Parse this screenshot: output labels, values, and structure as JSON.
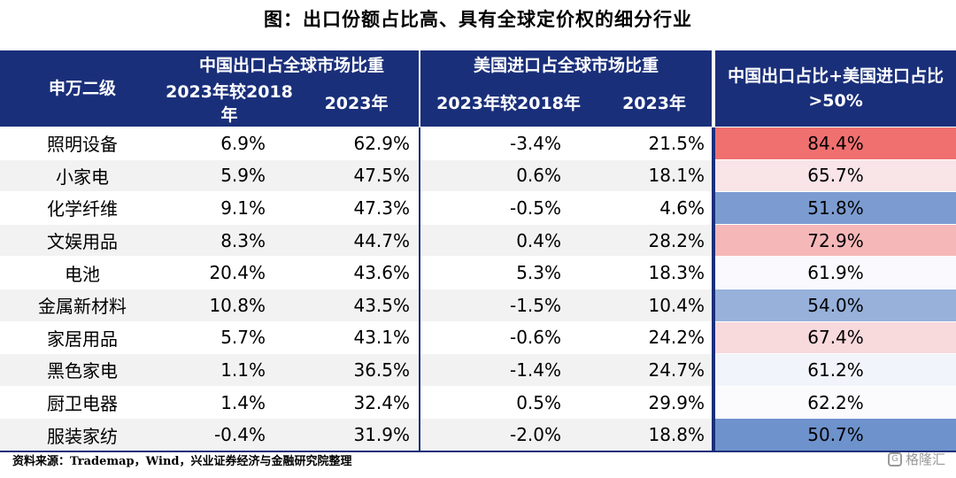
{
  "title": "图：出口份额占比高、具有全球定价权的细分行业",
  "header": {
    "col_industry": "申万二级",
    "group_cn_export": "中国出口占全球市场比重",
    "group_us_import": "美国进口占全球市场比重",
    "col_combined": "中国出口占比+美国进口占比>50%",
    "sub_change": "2023年较2018年",
    "sub_2023": "2023年"
  },
  "chart_data": {
    "type": "table",
    "columns": [
      "申万二级",
      "中国出口占全球市场比重 2023年较2018年",
      "中国出口占全球市场比重 2023年",
      "美国进口占全球市场比重 2023年较2018年",
      "美国进口占全球市场比重 2023年",
      "中国出口占比+美国进口占比>50%"
    ],
    "rows": [
      {
        "industry": "照明设备",
        "cn_change": "6.9%",
        "cn_2023": "62.9%",
        "us_change": "-3.4%",
        "us_2023": "21.5%",
        "combined": "84.4%",
        "combined_value": 84.4
      },
      {
        "industry": "小家电",
        "cn_change": "5.9%",
        "cn_2023": "47.5%",
        "us_change": "0.6%",
        "us_2023": "18.1%",
        "combined": "65.7%",
        "combined_value": 65.7
      },
      {
        "industry": "化学纤维",
        "cn_change": "9.1%",
        "cn_2023": "47.3%",
        "us_change": "-0.5%",
        "us_2023": "4.6%",
        "combined": "51.8%",
        "combined_value": 51.8
      },
      {
        "industry": "文娱用品",
        "cn_change": "8.3%",
        "cn_2023": "44.7%",
        "us_change": "0.4%",
        "us_2023": "28.2%",
        "combined": "72.9%",
        "combined_value": 72.9
      },
      {
        "industry": "电池",
        "cn_change": "20.4%",
        "cn_2023": "43.6%",
        "us_change": "5.3%",
        "us_2023": "18.3%",
        "combined": "61.9%",
        "combined_value": 61.9
      },
      {
        "industry": "金属新材料",
        "cn_change": "10.8%",
        "cn_2023": "43.5%",
        "us_change": "-1.5%",
        "us_2023": "10.4%",
        "combined": "54.0%",
        "combined_value": 54.0
      },
      {
        "industry": "家居用品",
        "cn_change": "5.7%",
        "cn_2023": "43.1%",
        "us_change": "-0.6%",
        "us_2023": "24.2%",
        "combined": "67.4%",
        "combined_value": 67.4
      },
      {
        "industry": "黑色家电",
        "cn_change": "1.1%",
        "cn_2023": "36.5%",
        "us_change": "-1.4%",
        "us_2023": "24.7%",
        "combined": "61.2%",
        "combined_value": 61.2
      },
      {
        "industry": "厨卫电器",
        "cn_change": "1.4%",
        "cn_2023": "32.4%",
        "us_change": "0.5%",
        "us_2023": "29.9%",
        "combined": "62.2%",
        "combined_value": 62.2
      },
      {
        "industry": "服装家纺",
        "cn_change": "-0.4%",
        "cn_2023": "31.9%",
        "us_change": "-2.0%",
        "us_2023": "18.8%",
        "combined": "50.7%",
        "combined_value": 50.7
      }
    ],
    "heat_colors": {
      "high": "#f07070",
      "mid": "#fbfbfe",
      "low": "#6e92cc"
    }
  },
  "source": "资料来源：Trademap，Wind，兴业证券经济与金融研究院整理",
  "watermark": "格隆汇",
  "colors": {
    "header_bg": "#1a2f7a",
    "stripe": "#f2f2f2"
  }
}
